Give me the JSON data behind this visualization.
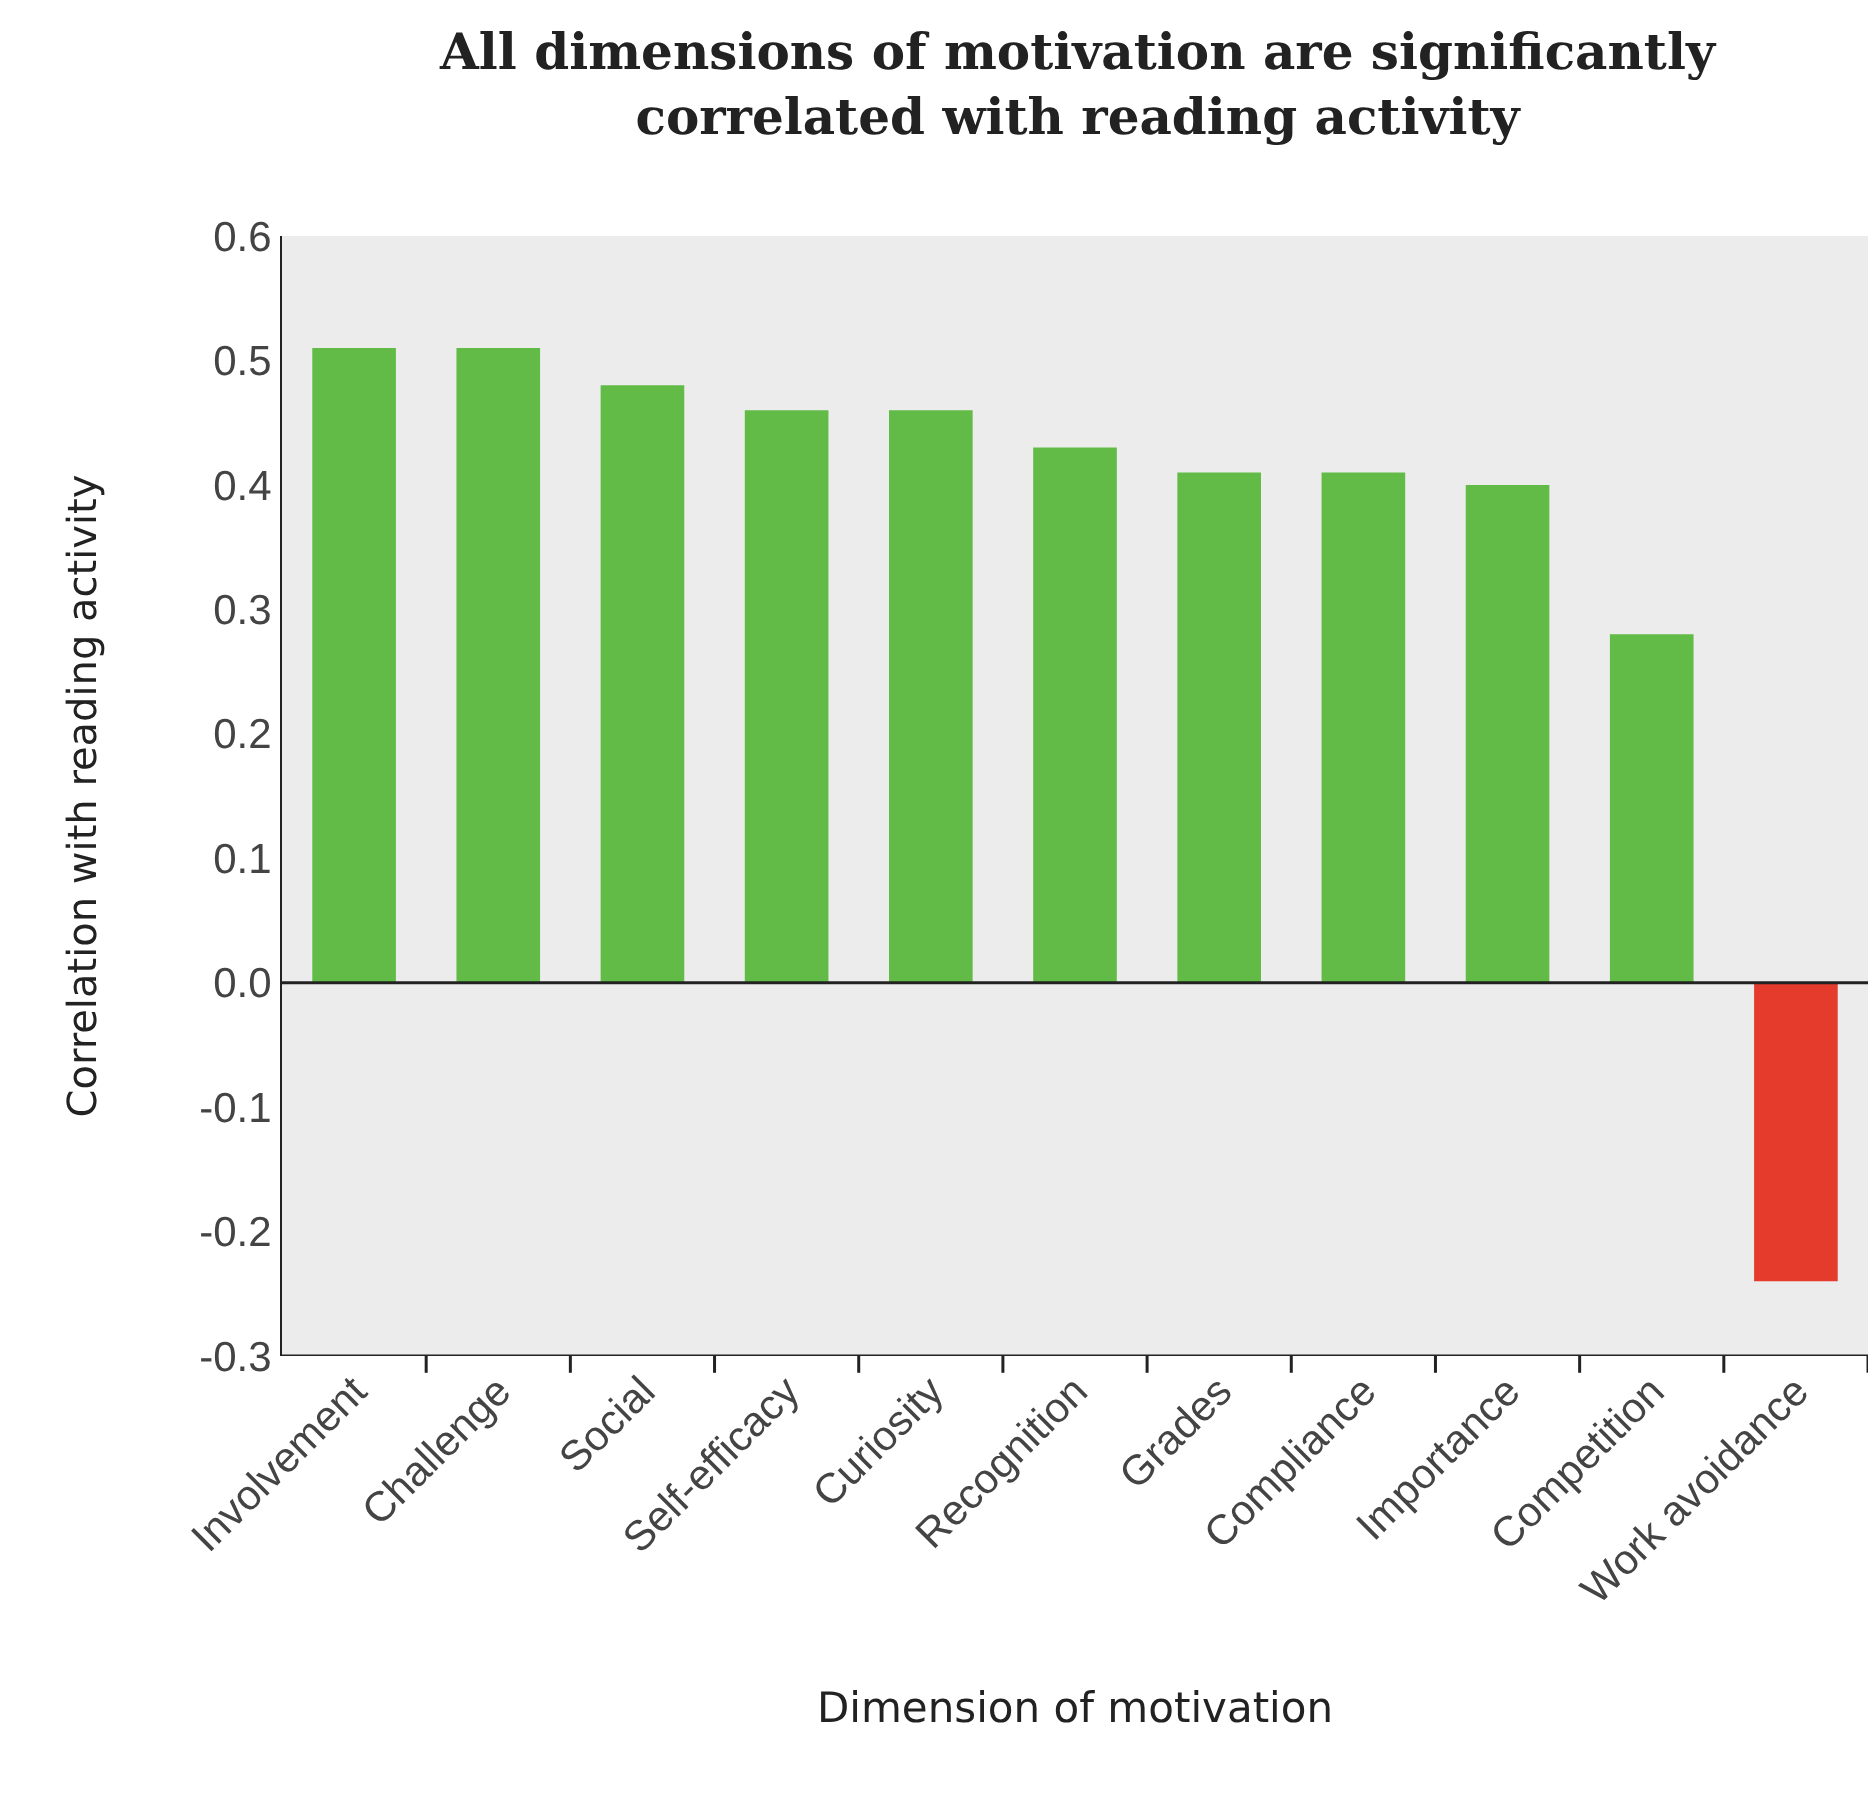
{
  "chart_data": {
    "type": "bar",
    "title": "All dimensions of motivation are significantly correlated with reading activity",
    "xlabel": "Dimension of motivation",
    "ylabel": "Correlation with reading activity",
    "categories": [
      "Involvement",
      "Challenge",
      "Social",
      "Self-efficacy",
      "Curiosity",
      "Recognition",
      "Grades",
      "Compliance",
      "Importance",
      "Competition",
      "Work avoidance"
    ],
    "values": [
      0.51,
      0.51,
      0.48,
      0.46,
      0.46,
      0.43,
      0.41,
      0.41,
      0.4,
      0.28,
      -0.24
    ],
    "colors": [
      "#62bb46",
      "#62bb46",
      "#62bb46",
      "#62bb46",
      "#62bb46",
      "#62bb46",
      "#62bb46",
      "#62bb46",
      "#62bb46",
      "#62bb46",
      "#e43b2c"
    ],
    "ylim": [
      -0.3,
      0.6
    ],
    "yticks": [
      {
        "value": 0.6,
        "label": "0.6"
      },
      {
        "value": 0.5,
        "label": "0.5"
      },
      {
        "value": 0.4,
        "label": "0.4"
      },
      {
        "value": 0.3,
        "label": "0.3"
      },
      {
        "value": 0.2,
        "label": "0.2"
      },
      {
        "value": 0.1,
        "label": "0.1"
      },
      {
        "value": 0.0,
        "label": "0.0"
      },
      {
        "value": -0.1,
        "label": "-0.1"
      },
      {
        "value": -0.2,
        "label": "-0.2"
      },
      {
        "value": -0.3,
        "label": "-0.3"
      }
    ],
    "ref_lines": [
      {
        "axis": "y",
        "value": 0.0
      }
    ]
  }
}
